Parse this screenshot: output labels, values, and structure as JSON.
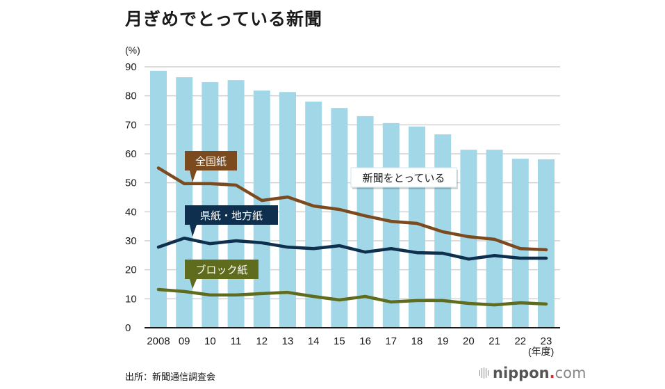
{
  "title": "月ぎめでとっている新聞",
  "source": "出所：新聞通信調査会",
  "logo": {
    "name": "nippon",
    "dot": ".",
    "tld": "com"
  },
  "chart_data": {
    "type": "bar",
    "title": "月ぎめでとっている新聞",
    "ylabel": "(%)",
    "xlabel": "(年度)",
    "ylim": [
      0,
      90
    ],
    "yticks": [
      0,
      10,
      20,
      30,
      40,
      50,
      60,
      70,
      80,
      90
    ],
    "grid": true,
    "categories": [
      "2008",
      "09",
      "10",
      "11",
      "12",
      "13",
      "14",
      "15",
      "16",
      "17",
      "18",
      "19",
      "20",
      "21",
      "22",
      "23"
    ],
    "bar_series": {
      "name": "新聞をとっている",
      "color": "#a2d7e8",
      "values": [
        88.6,
        86.4,
        84.7,
        85.4,
        81.8,
        81.3,
        78.0,
        75.8,
        73.0,
        70.6,
        69.4,
        66.7,
        61.4,
        61.4,
        58.3,
        58.1
      ]
    },
    "line_series": [
      {
        "name": "全国紙",
        "color": "#7b4a1e",
        "values": [
          55.1,
          49.7,
          49.7,
          49.2,
          43.9,
          45.1,
          42.0,
          40.8,
          38.6,
          36.7,
          36.0,
          33.1,
          31.4,
          30.5,
          27.3,
          26.9
        ]
      },
      {
        "name": "県紙・地方紙",
        "color": "#0e2f4d",
        "values": [
          27.8,
          30.9,
          29.0,
          30.0,
          29.3,
          27.8,
          27.3,
          28.3,
          26.1,
          27.3,
          25.9,
          25.7,
          23.7,
          24.9,
          24.0,
          24.0
        ]
      },
      {
        "name": "ブロック紙",
        "color": "#5f6b1d",
        "values": [
          13.2,
          12.5,
          11.3,
          11.3,
          11.8,
          12.2,
          10.8,
          9.6,
          10.8,
          8.9,
          9.4,
          9.4,
          8.4,
          7.9,
          8.6,
          8.2
        ]
      }
    ],
    "annotations": [
      {
        "text": "全国紙",
        "series": "全国紙",
        "style": "callout"
      },
      {
        "text": "県紙・地方紙",
        "series": "県紙・地方紙",
        "style": "callout"
      },
      {
        "text": "ブロック紙",
        "series": "ブロック紙",
        "style": "callout"
      },
      {
        "text": "新聞をとっている",
        "series": "新聞をとっている",
        "style": "box"
      }
    ]
  }
}
